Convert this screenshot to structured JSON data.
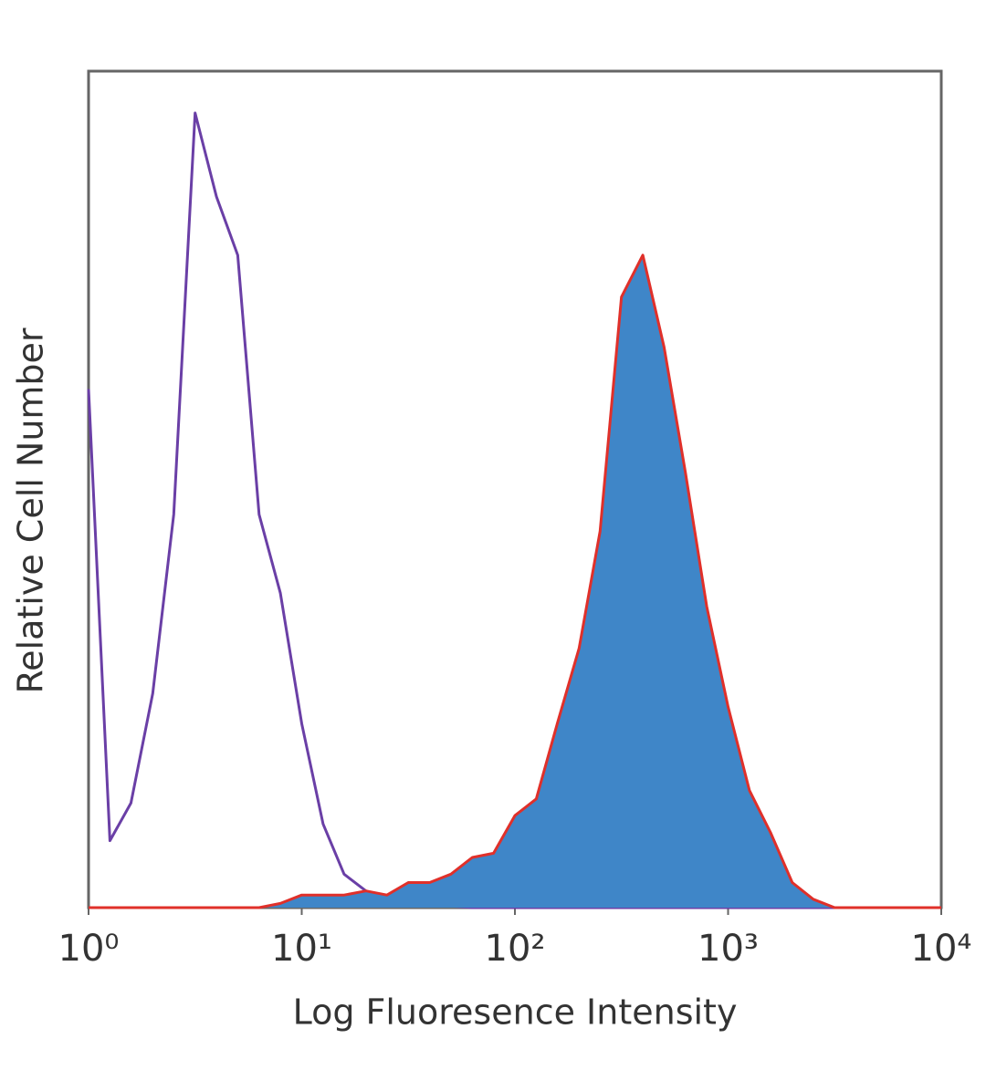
{
  "chart_data": {
    "type": "histogram",
    "xlabel": "Log Fluoresence Intensity",
    "ylabel": "Relative Cell Number",
    "xscale": "log",
    "xlim": [
      1,
      10000
    ],
    "xticks": [
      {
        "value": 1,
        "label": "10⁰"
      },
      {
        "value": 10,
        "label": "10¹"
      },
      {
        "value": 100,
        "label": "10²"
      },
      {
        "value": 1000,
        "label": "10³"
      },
      {
        "value": 10000,
        "label": "10⁴"
      }
    ],
    "ylim": [
      0,
      100
    ],
    "x": [
      1,
      1.26,
      1.58,
      2,
      2.51,
      3.16,
      3.98,
      5.01,
      6.31,
      7.94,
      10,
      12.6,
      15.8,
      20,
      25.1,
      31.6,
      39.8,
      50.1,
      63.1,
      79.4,
      100,
      126,
      158,
      200,
      251,
      316,
      398,
      501,
      631,
      794,
      1000,
      1260,
      1580,
      2000,
      2510,
      3160,
      3980,
      5010,
      6310,
      7940,
      10000
    ],
    "series": [
      {
        "color": "#6a3fa6",
        "fill": false,
        "values": [
          62,
          8,
          12.5,
          25.6,
          47,
          95,
          85,
          78,
          47,
          37.6,
          22,
          10,
          4,
          2,
          1,
          0.5,
          0.3,
          0.2,
          0,
          0,
          0,
          0,
          0,
          0,
          0,
          0,
          0,
          0,
          0,
          0,
          0,
          0,
          0,
          0,
          0,
          0,
          0,
          0,
          0,
          0,
          0
        ]
      },
      {
        "color": "#3f86c8",
        "edgecolor": "#e0302a",
        "fill": true,
        "values": [
          0,
          0,
          0,
          0,
          0,
          0,
          0,
          0,
          0,
          0.5,
          1.5,
          1.5,
          1.5,
          2,
          1.5,
          3,
          3,
          4,
          6,
          6.5,
          11,
          13,
          22,
          31,
          45,
          73,
          78,
          67,
          52,
          36,
          24,
          14,
          9,
          3,
          1,
          0,
          0,
          0,
          0,
          0,
          0
        ]
      }
    ]
  }
}
